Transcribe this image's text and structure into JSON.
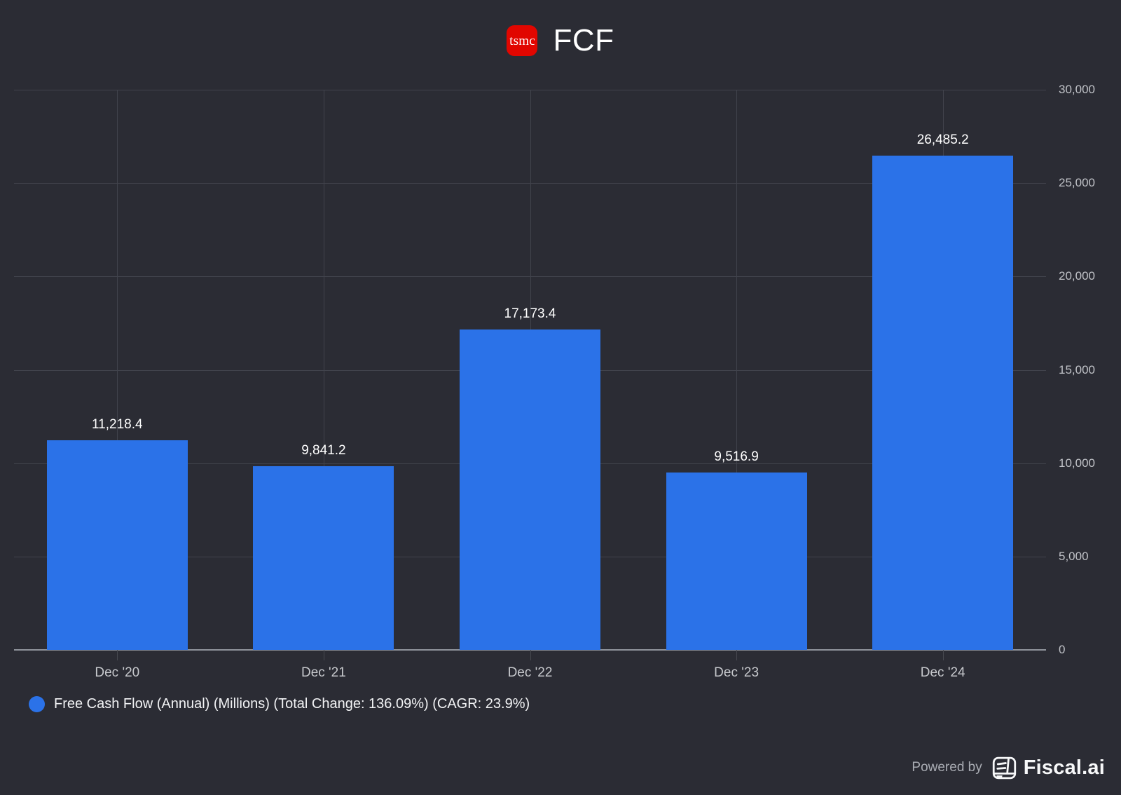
{
  "header": {
    "logo_text": "tsmc",
    "title": "FCF"
  },
  "colors": {
    "background": "#2b2c34",
    "bar": "#2b72e8",
    "logo_red": "#e10600",
    "gridline": "#41434c",
    "axis_line": "#8f939c"
  },
  "chart_data": {
    "type": "bar",
    "title": "FCF",
    "categories": [
      "Dec '20",
      "Dec '21",
      "Dec '22",
      "Dec '23",
      "Dec '24"
    ],
    "values": [
      11218.4,
      9841.2,
      17173.4,
      9516.9,
      26485.2
    ],
    "value_labels": [
      "11,218.4",
      "9,841.2",
      "17,173.4",
      "9,516.9",
      "26,485.2"
    ],
    "series_name": "Free Cash Flow (Annual) (Millions) (Total Change: 136.09%) (CAGR: 23.9%)",
    "ylim": [
      0,
      30000
    ],
    "ytick_step": 5000,
    "ytick_labels": [
      "0",
      "5,000",
      "10,000",
      "15,000",
      "20,000",
      "25,000",
      "30,000"
    ],
    "grid": true,
    "legend_position": "bottom-left",
    "y_axis_side": "right"
  },
  "legend": {
    "label": "Free Cash Flow (Annual) (Millions) (Total Change: 136.09%) (CAGR: 23.9%)"
  },
  "footer": {
    "powered_by": "Powered by",
    "brand": "Fiscal.ai"
  }
}
